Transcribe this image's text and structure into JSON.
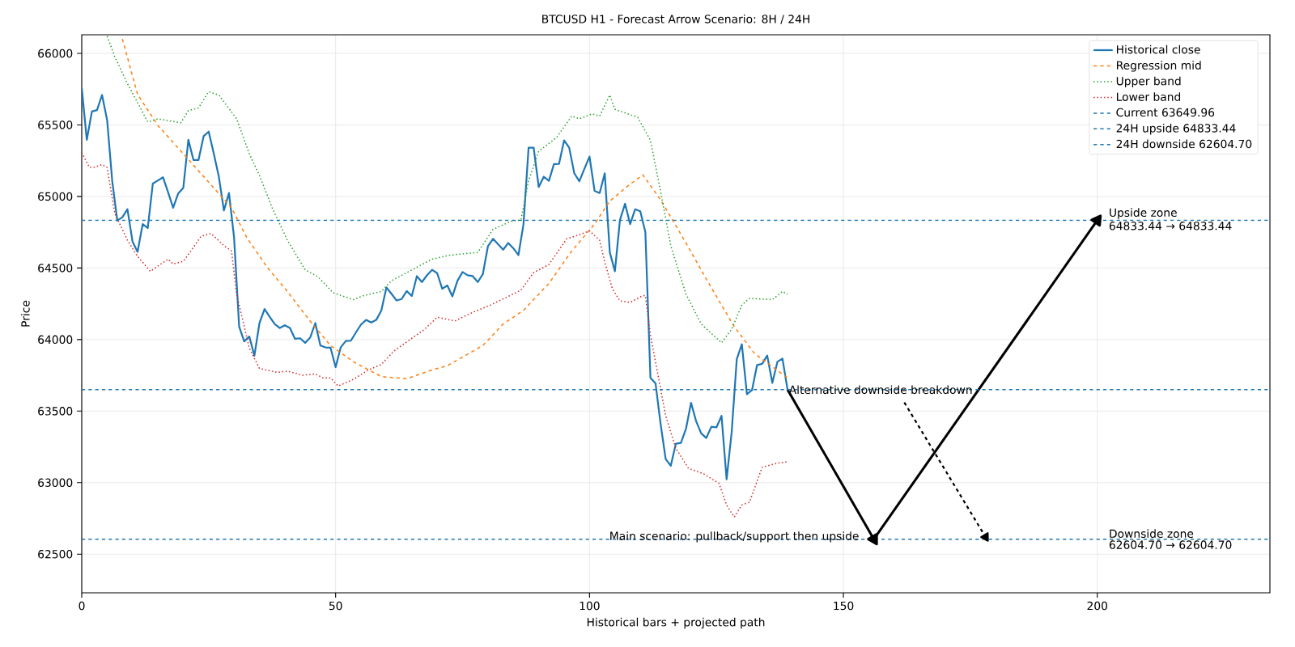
{
  "chart_data": {
    "type": "line",
    "title": "BTCUSD H1 - Forecast Arrow Scenario: 8H / 24H",
    "xlabel": "Historical bars + projected path",
    "ylabel": "Price",
    "xlim": [
      0,
      234
    ],
    "ylim": [
      62230,
      66130
    ],
    "xticks": [
      0,
      50,
      100,
      150,
      200
    ],
    "yticks": [
      62500,
      63000,
      63500,
      64000,
      64500,
      65000,
      65500,
      66000
    ],
    "grid": true,
    "legend": "top right",
    "series": [
      {
        "name": "Historical close",
        "color": "#1f77b4",
        "line_style": "solid",
        "x": [
          0,
          1,
          2,
          3,
          4,
          5,
          6,
          7,
          8,
          9,
          10,
          11,
          12,
          13,
          14,
          15,
          16,
          17,
          18,
          19,
          20,
          21,
          22,
          23,
          24,
          25,
          26,
          27,
          28,
          29,
          30,
          31,
          32,
          33,
          34,
          35,
          36,
          37,
          38,
          39,
          40,
          41,
          42,
          43,
          44,
          45,
          46,
          47,
          48,
          49,
          50,
          51,
          52,
          53,
          54,
          55,
          56,
          57,
          58,
          59,
          60,
          61,
          62,
          63,
          64,
          65,
          66,
          67,
          68,
          69,
          70,
          71,
          72,
          73,
          74,
          75,
          76,
          77,
          78,
          79,
          80,
          81,
          82,
          83,
          84,
          85,
          86,
          87,
          88,
          89,
          90,
          91,
          92,
          93,
          94,
          95,
          96,
          97,
          98,
          99,
          100,
          101,
          102,
          103,
          104,
          105,
          106,
          107,
          108,
          109,
          110,
          111,
          112,
          113,
          114,
          115,
          116,
          117,
          118,
          119,
          120,
          121,
          122,
          123,
          124,
          125,
          126,
          127,
          128,
          129,
          130,
          131,
          132,
          133,
          134,
          135,
          136,
          137,
          138,
          139
        ],
        "values": [
          65760,
          65396,
          65594,
          65604,
          65709,
          65534,
          65109,
          64832,
          64855,
          64911,
          64685,
          64613,
          64807,
          64780,
          65090,
          65112,
          65134,
          65030,
          64921,
          65021,
          65060,
          65396,
          65255,
          65255,
          65421,
          65453,
          65300,
          65138,
          64902,
          65024,
          64713,
          64090,
          63987,
          64021,
          63887,
          64115,
          64213,
          64160,
          64109,
          64081,
          64100,
          64081,
          64005,
          64009,
          63977,
          64015,
          64115,
          63958,
          63945,
          63943,
          63807,
          63945,
          63990,
          63992,
          64050,
          64105,
          64137,
          64119,
          64137,
          64203,
          64364,
          64320,
          64273,
          64283,
          64339,
          64304,
          64443,
          64402,
          64450,
          64487,
          64464,
          64355,
          64378,
          64302,
          64411,
          64472,
          64449,
          64443,
          64402,
          64458,
          64653,
          64704,
          64666,
          64628,
          64675,
          64638,
          64590,
          64807,
          65341,
          65341,
          65066,
          65138,
          65109,
          65226,
          65228,
          65392,
          65341,
          65162,
          65106,
          65194,
          65279,
          65039,
          65024,
          65162,
          64609,
          64477,
          64836,
          64949,
          64807,
          64911,
          64896,
          64751,
          63732,
          63694,
          63410,
          63165,
          63118,
          63272,
          63278,
          63376,
          63558,
          63429,
          63344,
          63312,
          63391,
          63386,
          63467,
          63023,
          63354,
          63863,
          63967,
          63618,
          63646,
          63822,
          63830,
          63888,
          63697,
          63844,
          63867,
          63650
        ]
      },
      {
        "name": "Regression mid",
        "color": "#ff7f0e",
        "line_style": "dashed",
        "x": [
          8,
          11,
          15,
          20.5,
          25,
          29.5,
          32.5,
          36.5,
          40.5,
          45,
          49,
          53.5,
          59,
          64,
          69,
          72,
          79,
          83,
          87,
          92,
          96.5,
          101,
          104,
          107.5,
          110.5,
          114,
          119,
          123.5,
          128.5,
          132.5,
          139
        ],
        "values": [
          66100,
          65713,
          65496,
          65279,
          65100,
          64921,
          64713,
          64506,
          64336,
          64128,
          63958,
          63845,
          63741,
          63726,
          63788,
          63817,
          63958,
          64109,
          64204,
          64392,
          64619,
          64807,
          64968,
          65072,
          65151,
          64977,
          64675,
          64392,
          64090,
          63902,
          63732
        ]
      },
      {
        "name": "Upper band",
        "color": "#2ca02c",
        "line_style": "dotted",
        "x": [
          5,
          6.5,
          9,
          11,
          13,
          15,
          19.5,
          21,
          23,
          25,
          27,
          30.5,
          33,
          35,
          37.5,
          40.5,
          44,
          46.5,
          49.5,
          53.5,
          55.5,
          59,
          61,
          64.5,
          69,
          72.5,
          78,
          81,
          84.5,
          86.5,
          88,
          90,
          93.5,
          96.5,
          98,
          100.5,
          102,
          104,
          105,
          109.5,
          112,
          114,
          116,
          119,
          122,
          126,
          128,
          130,
          131.5,
          136,
          138,
          139
        ],
        "values": [
          66120,
          65977,
          65788,
          65656,
          65520,
          65543,
          65515,
          65600,
          65619,
          65732,
          65709,
          65543,
          65298,
          65147,
          64921,
          64694,
          64487,
          64440,
          64327,
          64279,
          64307,
          64336,
          64411,
          64477,
          64562,
          64590,
          64609,
          64770,
          64826,
          64836,
          65109,
          65317,
          65411,
          65562,
          65543,
          65577,
          65562,
          65709,
          65609,
          65553,
          65392,
          65034,
          64656,
          64317,
          64109,
          63977,
          64072,
          64241,
          64288,
          64279,
          64336,
          64317
        ]
      },
      {
        "name": "Lower band",
        "color": "#d62728",
        "line_style": "dotted",
        "x": [
          0,
          1.5,
          2.5,
          4,
          5,
          6.5,
          9,
          11,
          13.5,
          17,
          18,
          20,
          21.5,
          23.5,
          25.5,
          28,
          29.5,
          30.5,
          33,
          35,
          38.5,
          40.5,
          43.5,
          46,
          47.5,
          49,
          50.5,
          53.5,
          56.5,
          59,
          61.5,
          64.5,
          67.5,
          70,
          73.5,
          77,
          80.5,
          86.5,
          89,
          92,
          95.5,
          98,
          100,
          102,
          103,
          104.5,
          106,
          108,
          110.5,
          111,
          112,
          113.5,
          115,
          117,
          119.5,
          122.5,
          125.5,
          127,
          128.5,
          130,
          131.5,
          134,
          137,
          139
        ],
        "values": [
          65307,
          65204,
          65204,
          65223,
          65204,
          64883,
          64694,
          64581,
          64477,
          64562,
          64528,
          64547,
          64619,
          64722,
          64741,
          64656,
          64619,
          64317,
          63940,
          63798,
          63770,
          63779,
          63751,
          63760,
          63732,
          63732,
          63675,
          63722,
          63788,
          63826,
          63920,
          63996,
          64071,
          64156,
          64130,
          64190,
          64241,
          64345,
          64468,
          64524,
          64704,
          64732,
          64760,
          64694,
          64543,
          64355,
          64270,
          64260,
          64307,
          64307,
          64033,
          63750,
          63467,
          63240,
          63099,
          63061,
          62995,
          62844,
          62759,
          62844,
          62863,
          63108,
          63136,
          63146
        ]
      },
      {
        "color": "#000000",
        "line_style": "solid",
        "x": [
          139,
          156
        ],
        "values": [
          63650,
          62605
        ]
      },
      {
        "color": "#000000",
        "line_style": "solid",
        "x": [
          156,
          200
        ],
        "values": [
          62605,
          64833
        ]
      },
      {
        "color": "#000000",
        "line_style": "dashed",
        "x": [
          162,
          178
        ],
        "values": [
          63560,
          62620
        ]
      }
    ],
    "ref_lines": [
      {
        "axis": "y",
        "value": 63649.96,
        "label": "Current 63649.96",
        "color": "#1f77b4",
        "line_style": "dashed"
      },
      {
        "axis": "y",
        "value": 64833.44,
        "label": "24H upside 64833.44",
        "color": "#1f77b4",
        "line_style": "dashed"
      },
      {
        "axis": "y",
        "value": 62604.7,
        "label": "24H downside 62604.70",
        "color": "#1f77b4",
        "line_style": "dashed"
      }
    ],
    "annotations": [
      {
        "text": "Main scenario: pullback/support then upside",
        "x": 156,
        "y": 62604.7
      },
      {
        "text": "Alternative downside breakdown",
        "x": 139,
        "y": 63649.96
      },
      {
        "text": "Upside zone",
        "x": 202,
        "y": 64833.44
      },
      {
        "text": "64833.44 → 64833.44",
        "x": 202,
        "y": 64833.44
      },
      {
        "text": "Downside zone",
        "x": 202,
        "y": 62604.7
      },
      {
        "text": "62604.70 → 62604.70",
        "x": 202,
        "y": 62604.7
      }
    ]
  }
}
